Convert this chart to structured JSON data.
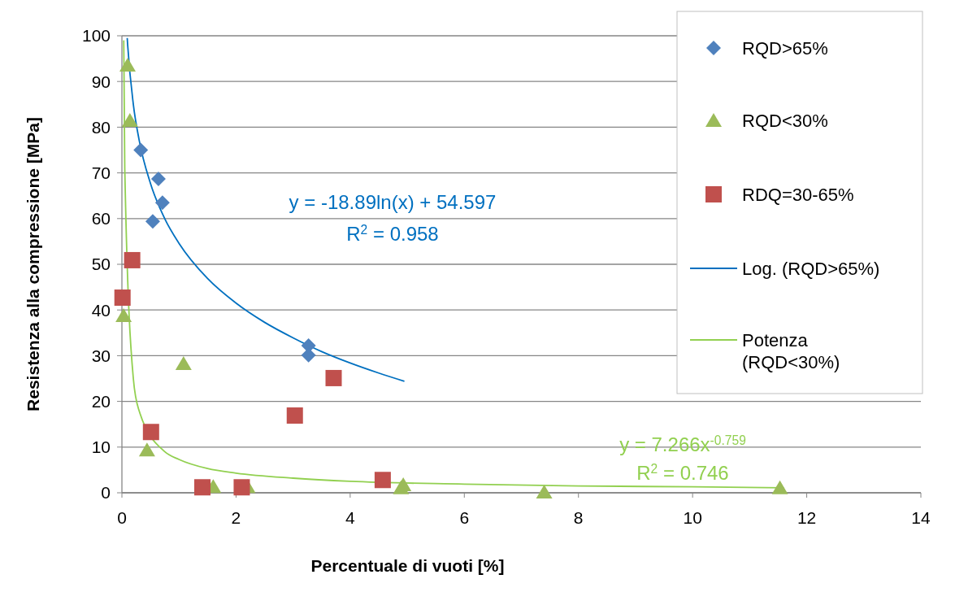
{
  "chart_data": {
    "type": "scatter",
    "xlabel": "Percentuale di vuoti [%]",
    "ylabel": "Resistenza alla compressione [MPa]",
    "xlim": [
      0,
      14
    ],
    "xticks": [
      0,
      2,
      4,
      6,
      8,
      10,
      12,
      14
    ],
    "ylim": [
      0,
      100
    ],
    "yticks": [
      0,
      10,
      20,
      30,
      40,
      50,
      60,
      70,
      80,
      90,
      100
    ],
    "grid": "y",
    "legend": "top right",
    "series": [
      {
        "name": "RQD>65%",
        "type": "scatter",
        "marker": "diamond",
        "color": "#4f81bd",
        "x": [
          0.33,
          0.64,
          0.71,
          0.54,
          3.27,
          3.27
        ],
        "values": [
          75,
          68.7,
          63.5,
          59.4,
          32.2,
          30.1
        ]
      },
      {
        "name": "RQD<30%",
        "type": "scatter",
        "marker": "triangle",
        "color": "#9bbb59",
        "x": [
          0.1,
          0.14,
          0.03,
          1.08,
          0.44,
          1.6,
          2.2,
          4.89,
          4.93,
          7.4,
          11.53
        ],
        "values": [
          93.6,
          81.5,
          38.8,
          28.3,
          9.4,
          1.4,
          1.4,
          1.1,
          1.8,
          0.2,
          1.1
        ]
      },
      {
        "name": "RDQ=30-65%",
        "type": "scatter",
        "marker": "square",
        "color": "#c0504d",
        "x": [
          0.18,
          0.01,
          0.51,
          1.41,
          2.1,
          3.03,
          3.71,
          4.57
        ],
        "values": [
          50.9,
          42.7,
          13.3,
          1.2,
          1.2,
          16.9,
          25.1,
          2.8
        ]
      },
      {
        "name": "Log. (RQD>65%)",
        "type": "line",
        "marker": "none",
        "color": "#0070c0",
        "x": [
          0.093,
          0.1,
          0.2,
          0.3,
          0.5,
          0.75,
          1,
          1.5,
          2,
          2.5,
          3,
          3.5,
          4,
          4.5,
          4.95
        ],
        "values": [
          99.5,
          98.1,
          85,
          77.3,
          67.7,
          60,
          54.6,
          46.9,
          41.5,
          37.3,
          33.9,
          30.9,
          28.4,
          26.2,
          24.4
        ]
      },
      {
        "name": "Potenza (RQD<30%)",
        "type": "line",
        "marker": "none",
        "color": "#92d050",
        "x": [
          0.032,
          0.05,
          0.2,
          0.3,
          0.75,
          1,
          1.5,
          2,
          3,
          4,
          6,
          8,
          10,
          11.6
        ],
        "values": [
          99,
          71,
          25,
          18,
          9,
          7.3,
          5.3,
          4.3,
          3.2,
          2.5,
          1.9,
          1.5,
          1.3,
          1.1
        ]
      }
    ],
    "annotations": [
      "y = -18.89ln(x) + 54.597",
      "R$^{2}$ = 0.958",
      "y = 7.266x$^{-0.759}$",
      "R$^{2}$ = 0.746"
    ]
  }
}
